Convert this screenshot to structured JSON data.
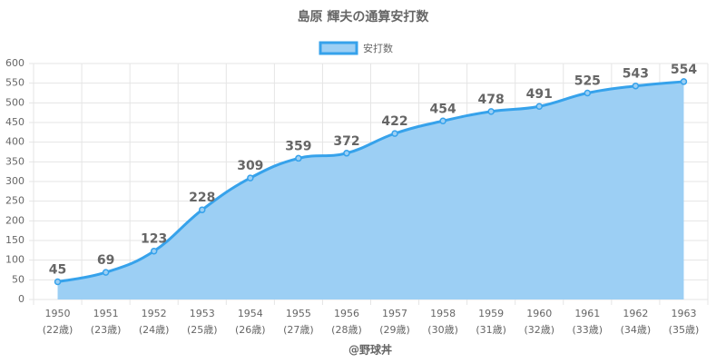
{
  "chart_data": {
    "type": "line",
    "title": "島原 輝夫の通算安打数",
    "x_label": "@野球丼",
    "categories": [
      [
        "1950",
        "(22歳)"
      ],
      [
        "1951",
        "(23歳)"
      ],
      [
        "1952",
        "(24歳)"
      ],
      [
        "1953",
        "(25歳)"
      ],
      [
        "1954",
        "(26歳)"
      ],
      [
        "1955",
        "(27歳)"
      ],
      [
        "1956",
        "(28歳)"
      ],
      [
        "1957",
        "(29歳)"
      ],
      [
        "1958",
        "(30歳)"
      ],
      [
        "1959",
        "(31歳)"
      ],
      [
        "1960",
        "(32歳)"
      ],
      [
        "1961",
        "(33歳)"
      ],
      [
        "1962",
        "(34歳)"
      ],
      [
        "1963",
        "(35歳)"
      ]
    ],
    "series": [
      {
        "name": "安打数",
        "color": "#36a2eb",
        "fill": "#9ccff4",
        "values": [
          45,
          69,
          123,
          228,
          309,
          359,
          372,
          422,
          454,
          478,
          491,
          525,
          543,
          554
        ]
      }
    ],
    "ylim": [
      0,
      600
    ],
    "yticks": [
      0,
      50,
      100,
      150,
      200,
      250,
      300,
      350,
      400,
      450,
      500,
      550,
      600
    ],
    "grid": true,
    "legend": "top"
  }
}
